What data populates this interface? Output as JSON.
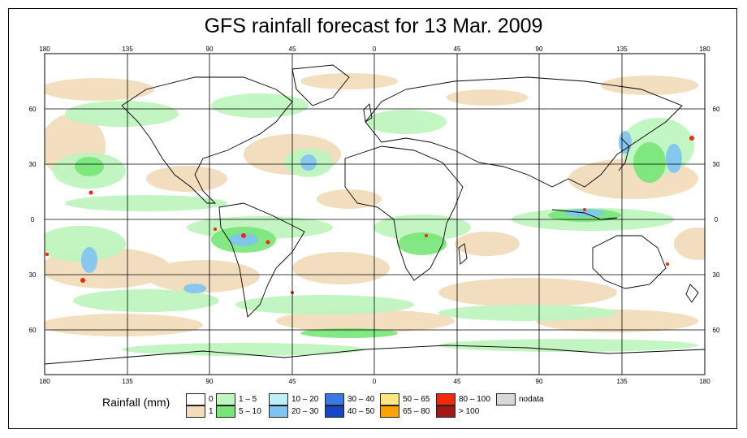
{
  "title": "GFS rainfall forecast for 13 Mar. 2009",
  "lon_ticks": [
    "180",
    "135",
    "90",
    "45",
    "0",
    "45",
    "90",
    "135",
    "180"
  ],
  "lat_ticks": [
    "60",
    "30",
    "0",
    "30",
    "60"
  ],
  "legend": {
    "title": "Rainfall (mm)",
    "items": [
      {
        "label": "0",
        "color": "#ffffff"
      },
      {
        "label": "1",
        "color": "#f2dcbc"
      },
      {
        "label": "1 – 5",
        "color": "#bff5bf"
      },
      {
        "label": "5 – 10",
        "color": "#77e577"
      },
      {
        "label": "10 – 20",
        "color": "#bdeefa"
      },
      {
        "label": "20 – 30",
        "color": "#7fc4f2"
      },
      {
        "label": "30 – 40",
        "color": "#3c78e2"
      },
      {
        "label": "40 – 50",
        "color": "#1845c4"
      },
      {
        "label": "50 – 65",
        "color": "#ffe680"
      },
      {
        "label": "65 – 80",
        "color": "#ffa200"
      },
      {
        "label": "80 – 100",
        "color": "#ee2a0a"
      },
      {
        "label": "> 100",
        "color": "#a01818"
      },
      {
        "label": "nodata",
        "color": "#d8d8d8"
      }
    ]
  }
}
